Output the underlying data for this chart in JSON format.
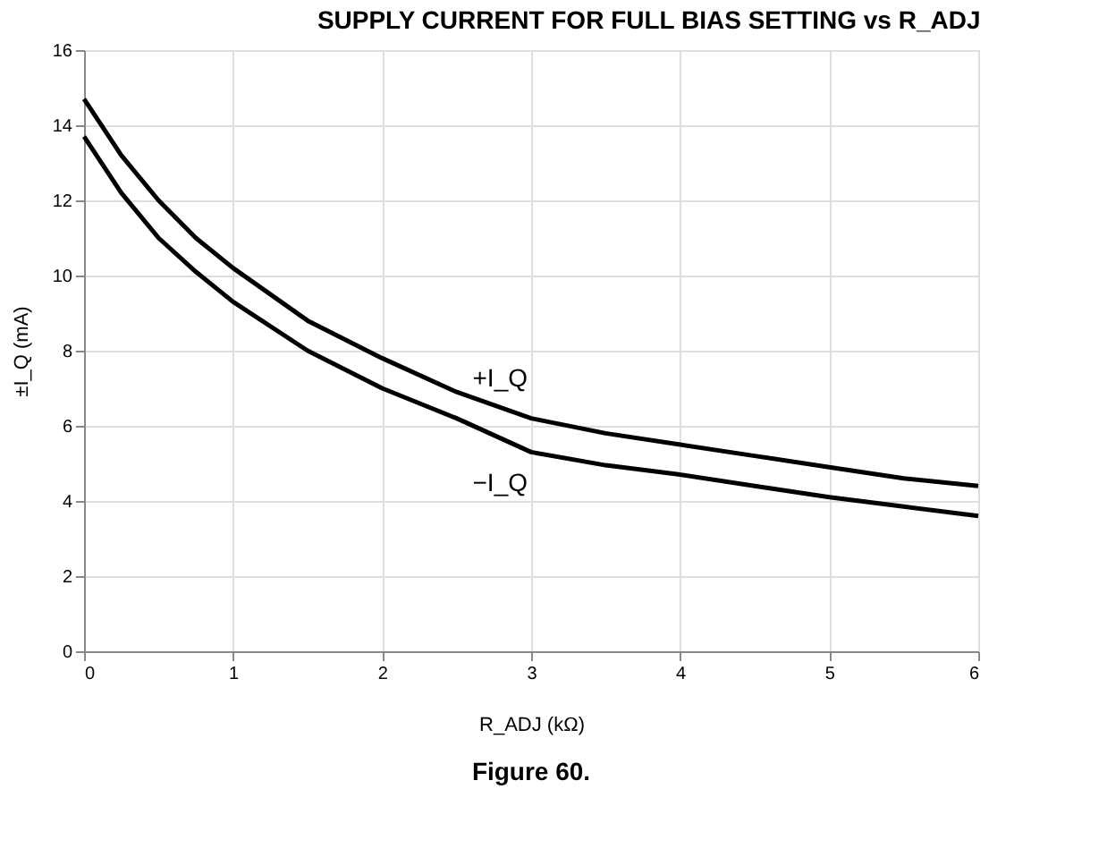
{
  "chart_data": {
    "type": "line",
    "title": "SUPPLY CURRENT FOR FULL BIAS SETTING vs R_ADJ",
    "xlabel": "R_ADJ (kΩ)",
    "ylabel": "±I_Q (mA)",
    "x": [
      0,
      0.25,
      0.5,
      0.75,
      1,
      1.5,
      2,
      2.5,
      3,
      3.5,
      4,
      4.5,
      5,
      5.5,
      6
    ],
    "series": [
      {
        "name": "+I_Q",
        "color": "#000000",
        "values": [
          14.7,
          13.2,
          12.0,
          11.0,
          10.2,
          8.8,
          7.8,
          6.9,
          6.2,
          5.8,
          5.5,
          5.2,
          4.9,
          4.6,
          4.4
        ]
      },
      {
        "name": "−I_Q",
        "color": "#000000",
        "values": [
          13.7,
          12.2,
          11.0,
          10.1,
          9.3,
          8.0,
          7.0,
          6.2,
          5.3,
          4.95,
          4.7,
          4.4,
          4.1,
          3.85,
          3.6
        ]
      }
    ],
    "xlim": [
      0,
      6
    ],
    "ylim": [
      0,
      16
    ],
    "xticks": [
      0,
      1,
      2,
      3,
      4,
      5,
      6
    ],
    "yticks": [
      0,
      2,
      4,
      6,
      8,
      10,
      12,
      14,
      16
    ],
    "grid": true,
    "marker": "none",
    "line_style": "solid",
    "legend": false,
    "annotations": [
      "Figure 60."
    ]
  }
}
